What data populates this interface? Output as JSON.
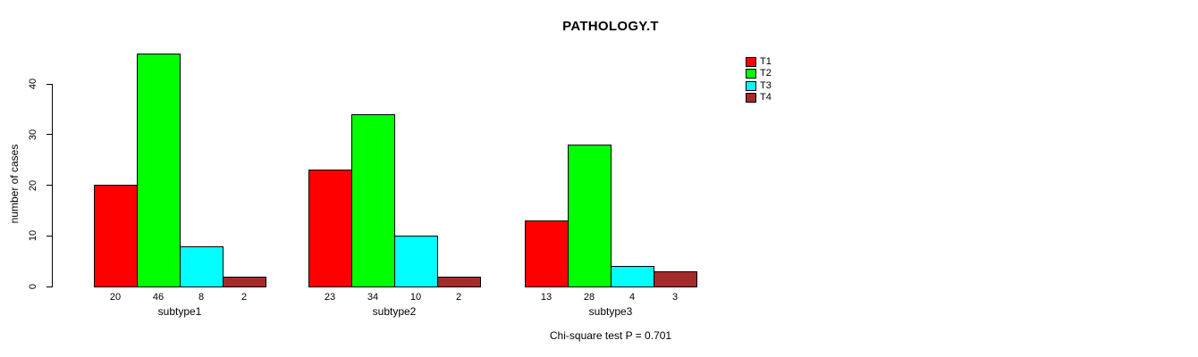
{
  "chart_data": {
    "type": "bar",
    "title": "PATHOLOGY.T",
    "ylabel": "number of cases",
    "xlabel": "",
    "categories": [
      "subtype1",
      "subtype2",
      "subtype3"
    ],
    "series": [
      {
        "name": "T1",
        "color": "#ff0000",
        "values": [
          20,
          23,
          13
        ]
      },
      {
        "name": "T2",
        "color": "#00ff00",
        "values": [
          46,
          34,
          28
        ]
      },
      {
        "name": "T3",
        "color": "#00ffff",
        "values": [
          8,
          10,
          4
        ]
      },
      {
        "name": "T4",
        "color": "#a52a2a",
        "values": [
          2,
          2,
          3
        ]
      }
    ],
    "yticks": [
      0,
      10,
      20,
      30,
      40
    ],
    "ylim": [
      0,
      46
    ],
    "grid": false,
    "bar_value_labels_shown": true,
    "legend": {
      "position": "top-right",
      "entries": [
        "T1",
        "T2",
        "T3",
        "T4"
      ]
    },
    "footnote": "Chi-square test P = 0.701"
  }
}
